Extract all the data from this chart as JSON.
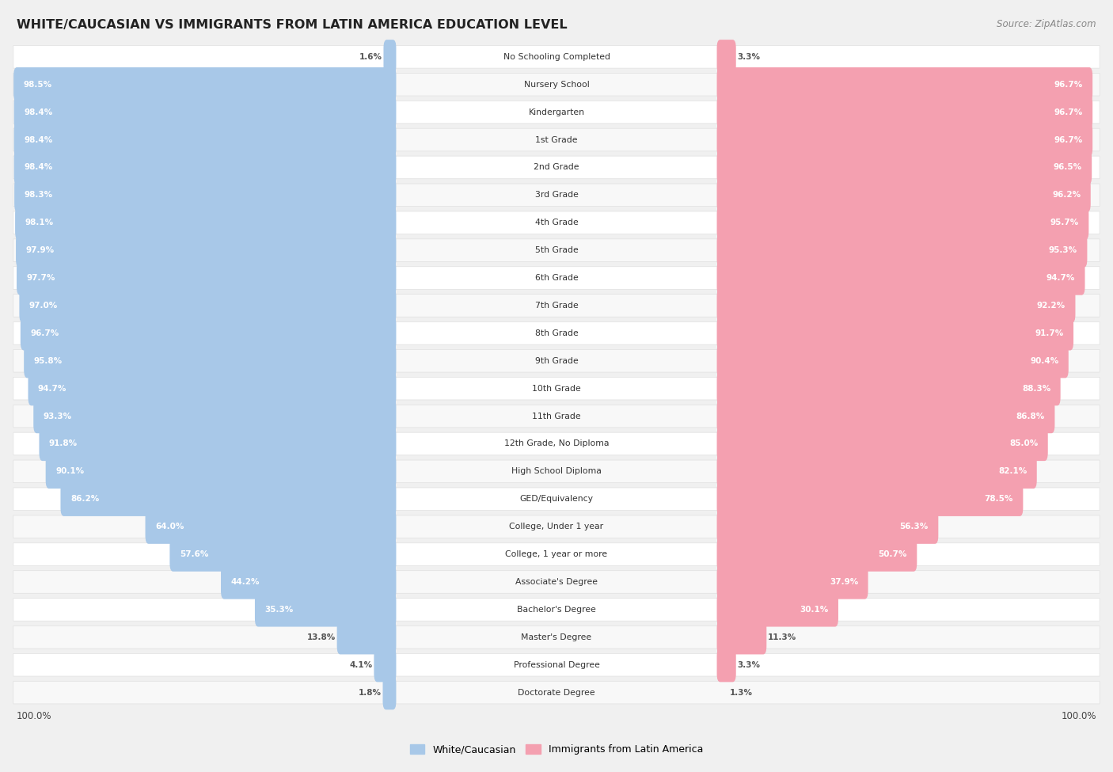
{
  "title": "WHITE/CAUCASIAN VS IMMIGRANTS FROM LATIN AMERICA EDUCATION LEVEL",
  "source": "Source: ZipAtlas.com",
  "categories": [
    "No Schooling Completed",
    "Nursery School",
    "Kindergarten",
    "1st Grade",
    "2nd Grade",
    "3rd Grade",
    "4th Grade",
    "5th Grade",
    "6th Grade",
    "7th Grade",
    "8th Grade",
    "9th Grade",
    "10th Grade",
    "11th Grade",
    "12th Grade, No Diploma",
    "High School Diploma",
    "GED/Equivalency",
    "College, Under 1 year",
    "College, 1 year or more",
    "Associate's Degree",
    "Bachelor's Degree",
    "Master's Degree",
    "Professional Degree",
    "Doctorate Degree"
  ],
  "white_values": [
    1.6,
    98.5,
    98.4,
    98.4,
    98.4,
    98.3,
    98.1,
    97.9,
    97.7,
    97.0,
    96.7,
    95.8,
    94.7,
    93.3,
    91.8,
    90.1,
    86.2,
    64.0,
    57.6,
    44.2,
    35.3,
    13.8,
    4.1,
    1.8
  ],
  "latin_values": [
    3.3,
    96.7,
    96.7,
    96.7,
    96.5,
    96.2,
    95.7,
    95.3,
    94.7,
    92.2,
    91.7,
    90.4,
    88.3,
    86.8,
    85.0,
    82.1,
    78.5,
    56.3,
    50.7,
    37.9,
    30.1,
    11.3,
    3.3,
    1.3
  ],
  "white_color": "#a8c8e8",
  "latin_color": "#f4a0b0",
  "background_color": "#f0f0f0",
  "row_even_color": "#ffffff",
  "row_odd_color": "#f8f8f8",
  "white_label": "White/Caucasian",
  "latin_label": "Immigrants from Latin America",
  "center_label_bg": "#ffffff",
  "value_label_inside_color": "#ffffff",
  "value_label_outside_color": "#555555"
}
